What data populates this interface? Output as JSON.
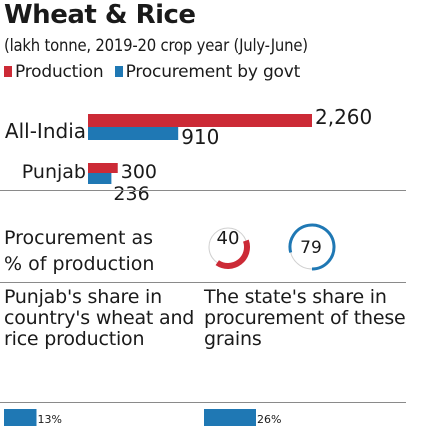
{
  "title": "Wheat & Rice",
  "subtitle": "(lakh tonne, 2019-20 crop year (July-June)",
  "legend": {
    "production": "Production",
    "procurement": "Procurement by govt"
  },
  "colors": {
    "production": "#cc2a36",
    "procurement": "#1f78b4",
    "text": "#1a1a1a",
    "divider": "#8a8a8a",
    "track": "#d0d0d0"
  },
  "chart_data": [
    {
      "type": "bar",
      "orientation": "horizontal",
      "categories": [
        "All-India",
        "Punjab"
      ],
      "series": [
        {
          "name": "Production",
          "values": [
            2260,
            300
          ]
        },
        {
          "name": "Procurement by govt",
          "values": [
            910,
            236
          ]
        }
      ],
      "value_labels": {
        "production": [
          "2,260",
          "300"
        ],
        "procurement": [
          "910",
          "236"
        ]
      },
      "xlim": [
        0,
        2260
      ]
    },
    {
      "type": "gauge",
      "label_line1": "Procurement as",
      "label_line2": "% of production",
      "items": [
        {
          "value": 40,
          "label": "40"
        },
        {
          "value": 79,
          "label": "79"
        }
      ]
    },
    {
      "type": "bar",
      "items": [
        {
          "text": "Punjab's share in country's wheat and rice production",
          "value": 13,
          "label": "13%"
        },
        {
          "text": "The state's share in procurement of these grains",
          "value": 26,
          "label": "26%"
        }
      ]
    }
  ]
}
